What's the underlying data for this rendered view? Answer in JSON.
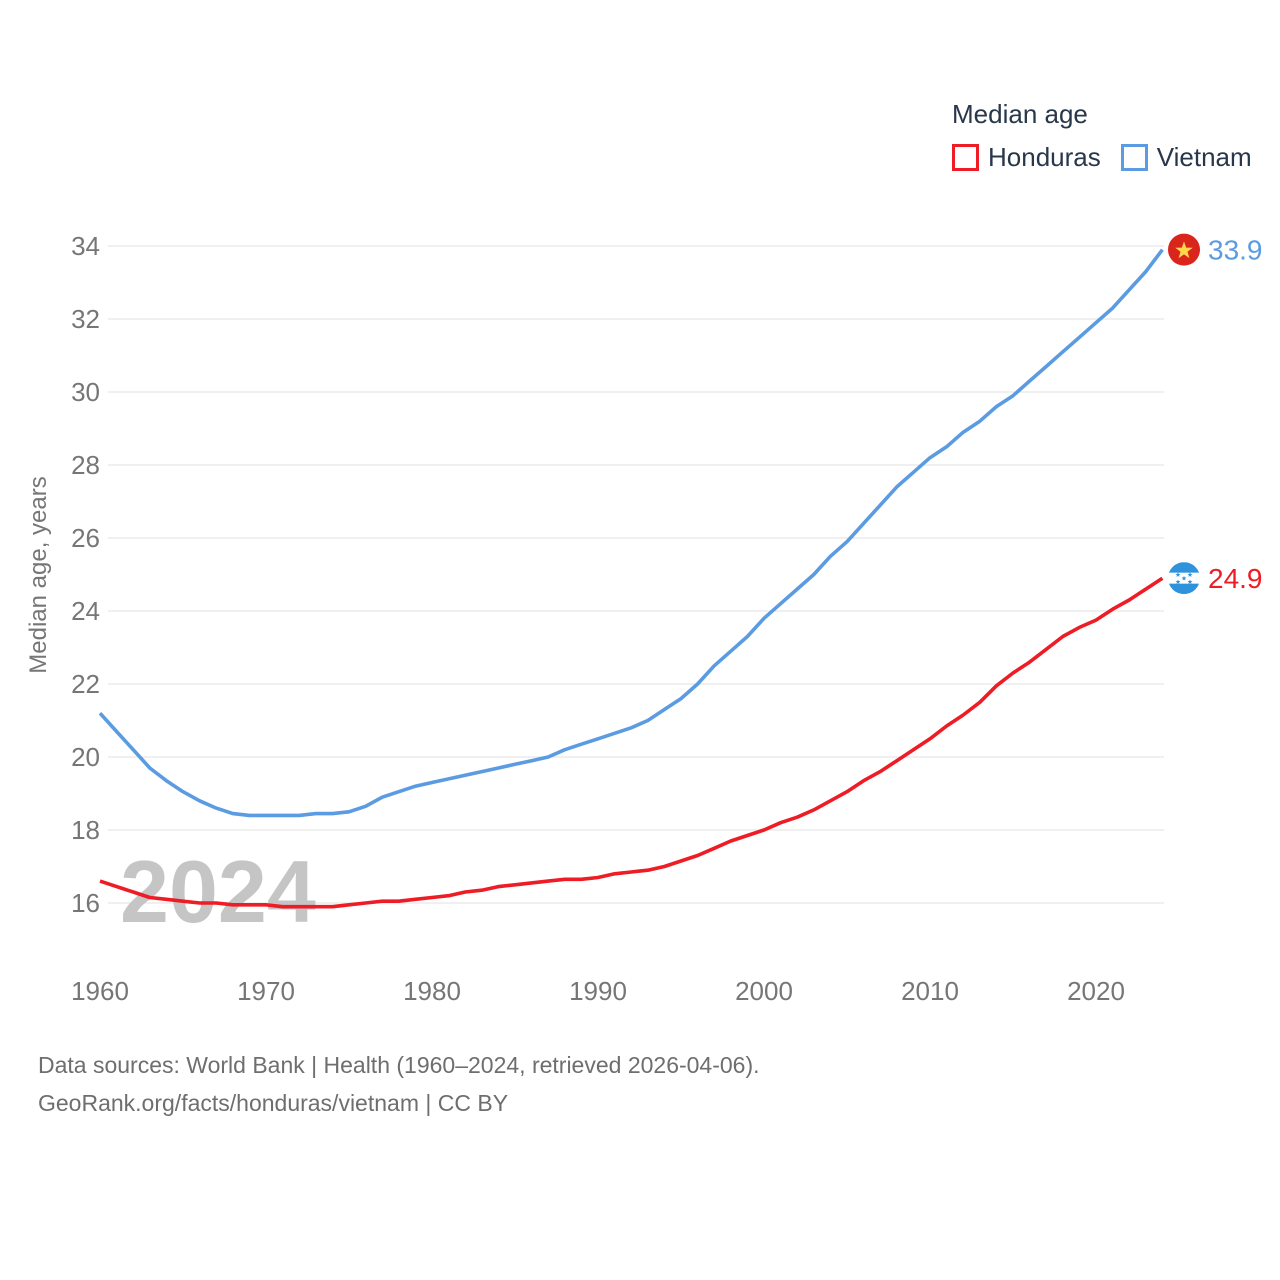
{
  "legend": {
    "title": "Median age",
    "items": [
      {
        "label": "Honduras",
        "color": "#ee1c25"
      },
      {
        "label": "Vietnam",
        "color": "#5b9be2"
      }
    ]
  },
  "chart_data": {
    "type": "line",
    "title": "Median age",
    "ylabel": "Median age, years",
    "grid": true,
    "legend_position": "top-right",
    "watermark": "2024",
    "xticks": [
      1960,
      1970,
      1980,
      1990,
      2000,
      2010,
      2020
    ],
    "yticks": [
      16,
      18,
      20,
      22,
      24,
      26,
      28,
      30,
      32,
      34
    ],
    "ylim": [
      16,
      34
    ],
    "x": [
      1960,
      1961,
      1962,
      1963,
      1964,
      1965,
      1966,
      1967,
      1968,
      1969,
      1970,
      1971,
      1972,
      1973,
      1974,
      1975,
      1976,
      1977,
      1978,
      1979,
      1980,
      1981,
      1982,
      1983,
      1984,
      1985,
      1986,
      1987,
      1988,
      1989,
      1990,
      1991,
      1992,
      1993,
      1994,
      1995,
      1996,
      1997,
      1998,
      1999,
      2000,
      2001,
      2002,
      2003,
      2004,
      2005,
      2006,
      2007,
      2008,
      2009,
      2010,
      2011,
      2012,
      2013,
      2014,
      2015,
      2016,
      2017,
      2018,
      2019,
      2020,
      2021,
      2022,
      2023,
      2024
    ],
    "series": [
      {
        "name": "Honduras",
        "color": "#ee1c25",
        "end_label": "24.9",
        "flag": "honduras",
        "values": [
          16.6,
          16.45,
          16.3,
          16.15,
          16.1,
          16.05,
          16.0,
          16.0,
          15.95,
          15.95,
          15.95,
          15.9,
          15.9,
          15.9,
          15.9,
          15.95,
          16.0,
          16.05,
          16.05,
          16.1,
          16.15,
          16.2,
          16.3,
          16.35,
          16.45,
          16.5,
          16.55,
          16.6,
          16.65,
          16.65,
          16.7,
          16.8,
          16.85,
          16.9,
          17.0,
          17.15,
          17.3,
          17.5,
          17.7,
          17.85,
          18.0,
          18.2,
          18.35,
          18.55,
          18.8,
          19.05,
          19.35,
          19.6,
          19.9,
          20.2,
          20.5,
          20.85,
          21.15,
          21.5,
          21.95,
          22.3,
          22.6,
          22.95,
          23.3,
          23.55,
          23.75,
          24.05,
          24.3,
          24.6,
          24.9
        ]
      },
      {
        "name": "Vietnam",
        "color": "#5b9be2",
        "end_label": "33.9",
        "flag": "vietnam",
        "values": [
          21.2,
          20.7,
          20.2,
          19.7,
          19.35,
          19.05,
          18.8,
          18.6,
          18.45,
          18.4,
          18.4,
          18.4,
          18.4,
          18.45,
          18.45,
          18.5,
          18.65,
          18.9,
          19.05,
          19.2,
          19.3,
          19.4,
          19.5,
          19.6,
          19.7,
          19.8,
          19.9,
          20.0,
          20.2,
          20.35,
          20.5,
          20.65,
          20.8,
          21.0,
          21.3,
          21.6,
          22.0,
          22.5,
          22.9,
          23.3,
          23.8,
          24.2,
          24.6,
          25.0,
          25.5,
          25.9,
          26.4,
          26.9,
          27.4,
          27.8,
          28.2,
          28.5,
          28.9,
          29.2,
          29.6,
          29.9,
          30.3,
          30.7,
          31.1,
          31.5,
          31.9,
          32.3,
          32.8,
          33.3,
          33.9
        ]
      }
    ]
  },
  "footer": {
    "line1": "Data sources: World Bank | Health (1960–2024, retrieved 2026-04-06).",
    "line2": "GeoRank.org/facts/honduras/vietnam | CC BY"
  }
}
